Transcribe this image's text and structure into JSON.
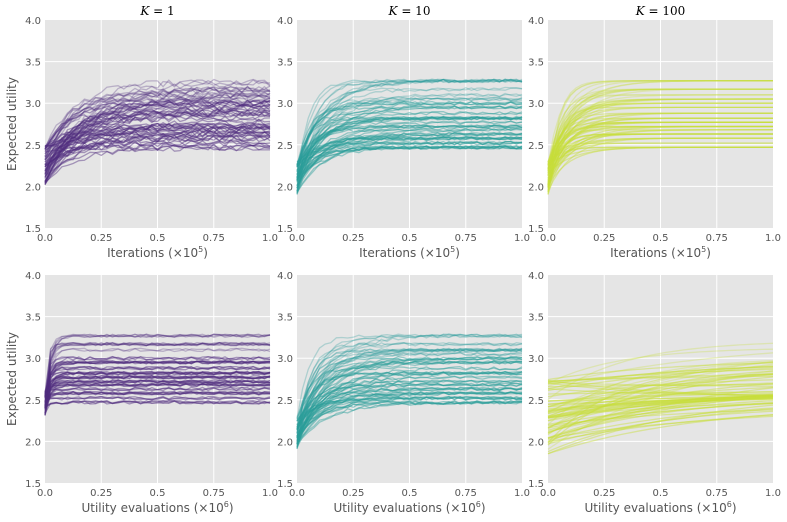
{
  "figure": {
    "ylabel": "Expected utility",
    "rows": [
      {
        "xlabel_text": "Iterations (×10",
        "xlabel_exp": "5",
        "xlabel_close": ")"
      },
      {
        "xlabel_text": "Utility evaluations (×10",
        "xlabel_exp": "6",
        "xlabel_close": ")"
      }
    ],
    "col_titles": [
      {
        "prefix": "K",
        "value": " = 1"
      },
      {
        "prefix": "K",
        "value": " = 10"
      },
      {
        "prefix": "K",
        "value": " = 100"
      }
    ],
    "colors": [
      "#4f2d7f",
      "#2a9d9a",
      "#c7de3a"
    ]
  },
  "chart_data": [
    {
      "type": "line",
      "row": 0,
      "col": 0,
      "title": "K = 1",
      "xlabel": "Iterations (×10^5)",
      "ylabel": "Expected utility",
      "xlim": [
        0,
        1.0
      ],
      "ylim": [
        1.5,
        4.0
      ],
      "xticks": [
        "0.0",
        "0.25",
        "0.5",
        "0.75",
        "1.0"
      ],
      "yticks": [
        "1.5",
        "2.0",
        "2.5",
        "3.0",
        "3.5",
        "4.0"
      ],
      "color": "#4f2d7f",
      "plateaus": [
        2.47,
        2.52,
        2.58,
        2.63,
        2.68,
        2.72,
        2.77,
        2.82,
        2.88,
        2.95,
        3.0,
        3.05,
        3.1,
        3.17,
        3.25
      ],
      "start_range": [
        2.0,
        2.5
      ],
      "rise_time": 0.15,
      "noise": 0.04
    },
    {
      "type": "line",
      "row": 0,
      "col": 1,
      "title": "K = 10",
      "xlabel": "Iterations (×10^5)",
      "ylabel": "",
      "xlim": [
        0,
        1.0
      ],
      "ylim": [
        1.5,
        4.0
      ],
      "xticks": [
        "0.0",
        "0.25",
        "0.5",
        "0.75",
        "1.0"
      ],
      "yticks": [
        "1.5",
        "2.0",
        "2.5",
        "3.0",
        "3.5",
        "4.0"
      ],
      "color": "#2a9d9a",
      "plateaus": [
        2.47,
        2.52,
        2.58,
        2.63,
        2.68,
        2.72,
        2.77,
        2.82,
        2.88,
        2.95,
        3.0,
        3.05,
        3.1,
        3.17,
        3.27
      ],
      "start_range": [
        1.9,
        2.3
      ],
      "rise_time": 0.1,
      "noise": 0.02
    },
    {
      "type": "line",
      "row": 0,
      "col": 2,
      "title": "K = 100",
      "xlabel": "Iterations (×10^5)",
      "ylabel": "",
      "xlim": [
        0,
        1.0
      ],
      "ylim": [
        1.5,
        4.0
      ],
      "xticks": [
        "0.0",
        "0.25",
        "0.5",
        "0.75",
        "1.0"
      ],
      "yticks": [
        "1.5",
        "2.0",
        "2.5",
        "3.0",
        "3.5",
        "4.0"
      ],
      "color": "#c7de3a",
      "plateaus": [
        2.47,
        2.52,
        2.58,
        2.63,
        2.68,
        2.72,
        2.77,
        2.82,
        2.88,
        2.95,
        3.0,
        3.05,
        3.1,
        3.17,
        3.27
      ],
      "start_range": [
        1.9,
        2.3
      ],
      "rise_time": 0.08,
      "noise": 0.0
    },
    {
      "type": "line",
      "row": 1,
      "col": 0,
      "title": "",
      "xlabel": "Utility evaluations (×10^6)",
      "ylabel": "Expected utility",
      "xlim": [
        0,
        1.0
      ],
      "ylim": [
        1.5,
        4.0
      ],
      "xticks": [
        "0.0",
        "0.25",
        "0.5",
        "0.75",
        "1.0"
      ],
      "yticks": [
        "1.5",
        "2.0",
        "2.5",
        "3.0",
        "3.5",
        "4.0"
      ],
      "color": "#4f2d7f",
      "plateaus": [
        2.47,
        2.52,
        2.58,
        2.63,
        2.68,
        2.72,
        2.77,
        2.82,
        2.88,
        2.95,
        3.0,
        3.05,
        3.1,
        3.17,
        3.27
      ],
      "start_range": [
        2.3,
        2.6
      ],
      "rise_time": 0.02,
      "noise": 0.02
    },
    {
      "type": "line",
      "row": 1,
      "col": 1,
      "title": "",
      "xlabel": "Utility evaluations (×10^6)",
      "ylabel": "",
      "xlim": [
        0,
        1.0
      ],
      "ylim": [
        1.5,
        4.0
      ],
      "xticks": [
        "0.0",
        "0.25",
        "0.5",
        "0.75",
        "1.0"
      ],
      "yticks": [
        "1.5",
        "2.0",
        "2.5",
        "3.0",
        "3.5",
        "4.0"
      ],
      "color": "#2a9d9a",
      "plateaus": [
        2.47,
        2.52,
        2.58,
        2.63,
        2.68,
        2.72,
        2.77,
        2.82,
        2.88,
        2.95,
        3.0,
        3.05,
        3.1,
        3.17,
        3.27
      ],
      "start_range": [
        1.9,
        2.3
      ],
      "rise_time": 0.1,
      "noise": 0.02
    },
    {
      "type": "line",
      "row": 1,
      "col": 2,
      "title": "",
      "xlabel": "Utility evaluations (×10^6)",
      "ylabel": "",
      "xlim": [
        0,
        1.0
      ],
      "ylim": [
        1.5,
        4.0
      ],
      "xticks": [
        "0.0",
        "0.25",
        "0.5",
        "0.75",
        "1.0"
      ],
      "yticks": [
        "1.5",
        "2.0",
        "2.5",
        "3.0",
        "3.5",
        "4.0"
      ],
      "color": "#c7de3a",
      "plateaus": [
        2.45,
        2.5,
        2.55,
        2.6,
        2.65,
        2.7,
        2.75,
        2.8,
        2.85,
        2.9,
        2.95,
        3.0,
        3.05,
        3.15,
        3.25
      ],
      "start_range": [
        1.85,
        2.75
      ],
      "rise_time": 0.6,
      "noise": 0.0
    }
  ]
}
